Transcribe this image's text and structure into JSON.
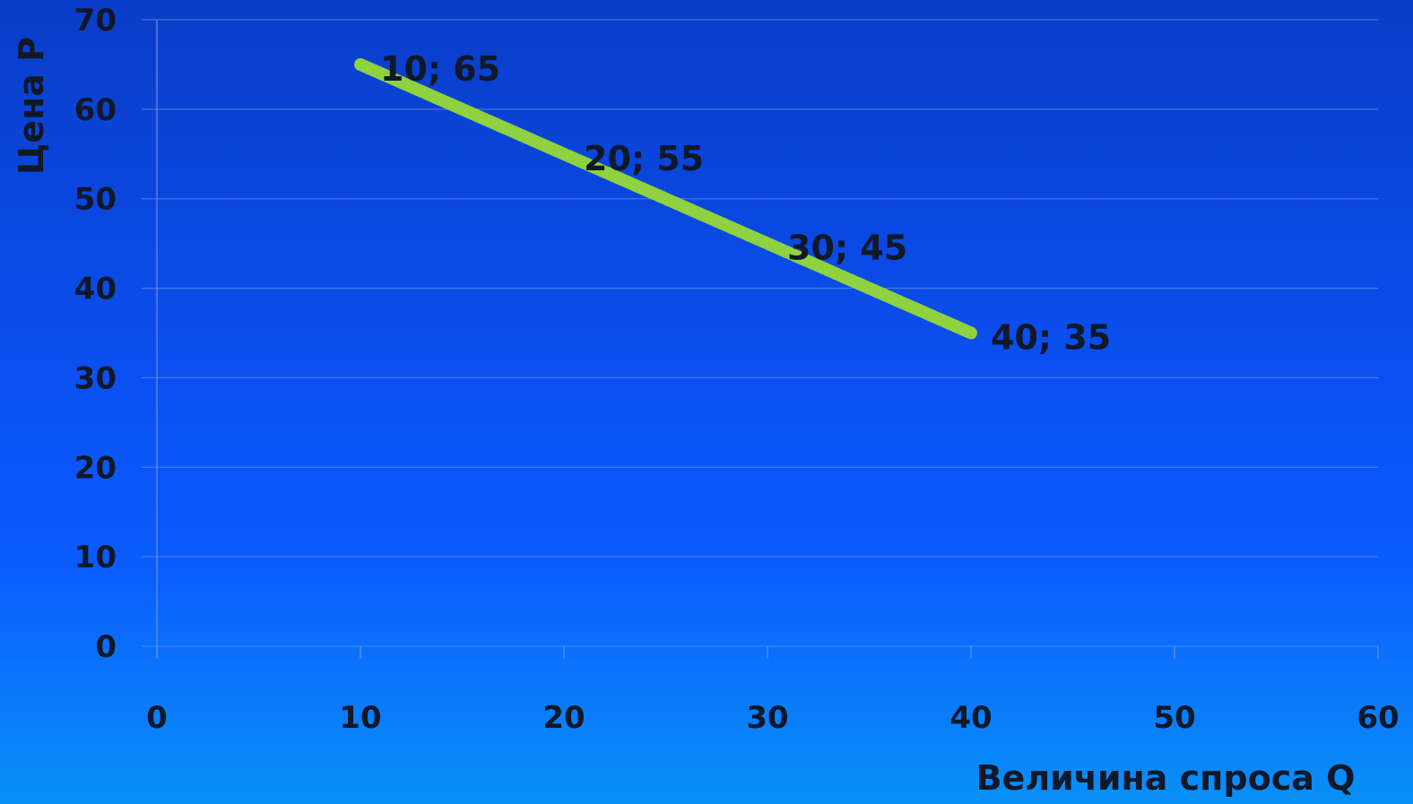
{
  "chart_data": {
    "type": "line",
    "title": "",
    "xlabel": "Величина спроса Q",
    "ylabel": "Цена  Р",
    "xlim": [
      0,
      60
    ],
    "ylim": [
      0,
      70
    ],
    "x_ticks": [
      0,
      10,
      20,
      30,
      40,
      50,
      60
    ],
    "y_ticks": [
      0,
      10,
      20,
      30,
      40,
      50,
      60,
      70
    ],
    "x_tick_labels": [
      "0",
      "10",
      "20",
      "30",
      "40",
      "50",
      "60"
    ],
    "y_tick_labels": [
      "0",
      "10",
      "20",
      "30",
      "40",
      "50",
      "60",
      "70"
    ],
    "grid": true,
    "series": [
      {
        "x": [
          10,
          20,
          30,
          40
        ],
        "y": [
          65,
          55,
          45,
          35
        ],
        "labels": [
          "10; 65",
          "20; 55",
          "30; 45",
          "40; 35"
        ],
        "color": "#8fd13f"
      }
    ]
  }
}
